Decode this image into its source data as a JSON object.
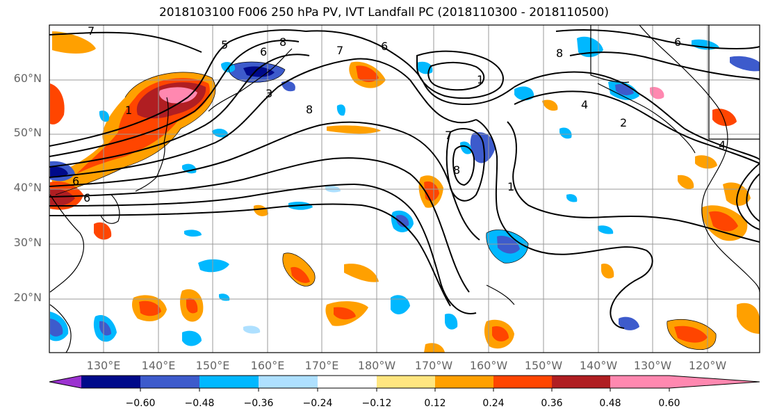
{
  "title": "2018103100 F006 250 hPa PV, IVT Landfall PC (2018110300 - 2018110500)",
  "lat_labels": [
    "60°N",
    "50°N",
    "40°N",
    "30°N",
    "20°N"
  ],
  "lon_labels": [
    "130°E",
    "140°E",
    "150°E",
    "160°E",
    "170°E",
    "180°W",
    "170°W",
    "160°W",
    "150°W",
    "140°W",
    "130°W",
    "120°W"
  ],
  "colorbar": {
    "ticks": [
      "−0.60",
      "−0.48",
      "−0.36",
      "−0.24",
      "−0.12",
      "0.12",
      "0.24",
      "0.36",
      "0.48",
      "0.60"
    ],
    "colors": [
      "#9b32d0",
      "#000a8a",
      "#3d5bcc",
      "#00b8ff",
      "#aee0ff",
      "#ffffff",
      "#ffe680",
      "#ffa000",
      "#ff4500",
      "#b01e22",
      "#ff88b0"
    ]
  },
  "contour_labels": [
    "5",
    "6",
    "8",
    "7",
    "1",
    "3",
    "6",
    "8",
    "7",
    "1",
    "4",
    "8",
    "6",
    "7",
    "8",
    "1",
    "2",
    "6",
    "4",
    "6"
  ],
  "colors": {
    "contour": "#000000",
    "grid": "#9a9a9a",
    "coast": "#000000"
  }
}
